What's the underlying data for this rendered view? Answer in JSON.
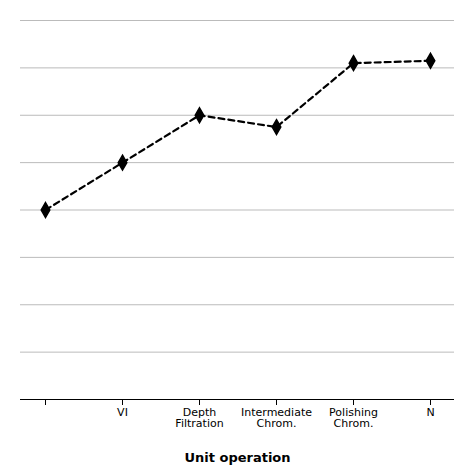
{
  "chart_data": {
    "type": "line",
    "xlabel": "Unit operation",
    "categories": [
      null,
      "VI",
      "Depth\nFiltration",
      "Intermediate\nChrom.",
      "Polishing\nChrom.",
      "N"
    ],
    "values": [
      93,
      95,
      97,
      96.5,
      99.2,
      99.3
    ],
    "ylim": [
      85,
      101
    ],
    "yticks": [
      85,
      87,
      89,
      91,
      93,
      95,
      97,
      99,
      101
    ],
    "grid": true,
    "tick_labels": "x",
    "color": "#000000",
    "marker": "diamond",
    "line_style": "dashed"
  }
}
